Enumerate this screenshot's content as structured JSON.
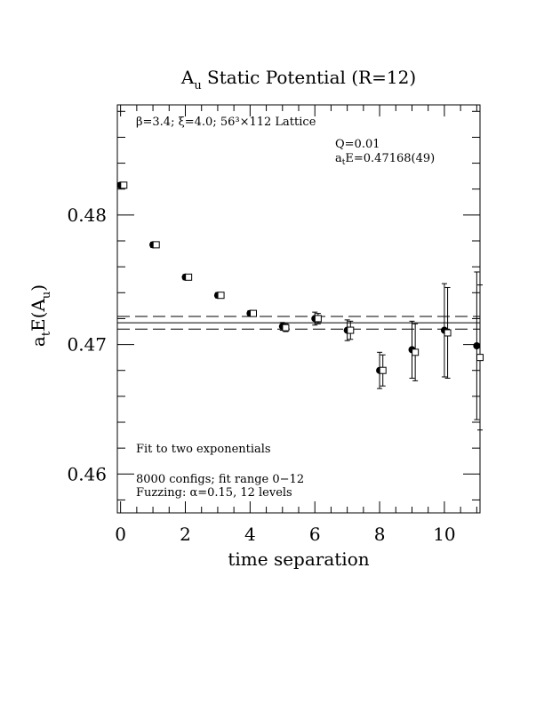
{
  "chart_data": {
    "type": "scatter",
    "title_main": "A",
    "title_sub": "u",
    "title_rest": " Static Potential (R=12)",
    "xlabel": "time separation",
    "ylabel_main": "a",
    "ylabel_sub": "t",
    "ylabel_mid": "E(A",
    "ylabel_sub2": "u",
    "ylabel_end": ")",
    "xlim": [
      -0.1,
      11.1
    ],
    "ylim": [
      0.457,
      0.4885
    ],
    "x_ticks": [
      0,
      2,
      4,
      6,
      8,
      10
    ],
    "x_tick_labels": [
      "0",
      "2",
      "4",
      "6",
      "8",
      "10"
    ],
    "y_ticks": [
      0.46,
      0.47,
      0.48
    ],
    "y_tick_labels": [
      "0.46",
      "0.47",
      "0.48"
    ],
    "lattice_label": "β=3.4; ξ=4.0; 56³×112 Lattice",
    "q_label": "Q=0.01",
    "fit_label_main": "a",
    "fit_label_sub": "t",
    "fit_label_rest": "E=0.47168(49)",
    "annotation_fit": "Fit to two exponentials",
    "annotation_configs": "8000 configs; fit range 0−12",
    "annotation_fuzzing": "Fuzzing: α=0.15, 12 levels",
    "fit_value": 0.47168,
    "fit_error": 0.00049,
    "series": [
      {
        "marker": "filled-circle",
        "x": [
          0,
          1,
          2,
          3,
          4,
          5,
          6,
          7,
          8,
          9,
          10,
          11
        ],
        "y": [
          0.4823,
          0.4777,
          0.4752,
          0.4738,
          0.4724,
          0.4714,
          0.472,
          0.4711,
          0.468,
          0.4696,
          0.4711,
          0.4699
        ],
        "err": [
          0.0002,
          0.0002,
          0.0002,
          0.0002,
          0.0002,
          0.0003,
          0.0005,
          0.0008,
          0.0014,
          0.0022,
          0.0036,
          0.0057
        ]
      },
      {
        "marker": "open-square",
        "x": [
          0.1,
          1.1,
          2.1,
          3.1,
          4.1,
          5.1,
          6.1,
          7.1,
          8.1,
          9.1,
          10.1,
          11.1
        ],
        "y": [
          0.4823,
          0.4777,
          0.4752,
          0.4738,
          0.4724,
          0.4713,
          0.472,
          0.4711,
          0.468,
          0.4694,
          0.4709,
          0.469
        ],
        "err": [
          0.0002,
          0.0002,
          0.0002,
          0.0002,
          0.0002,
          0.0003,
          0.0004,
          0.0007,
          0.0012,
          0.0022,
          0.0035,
          0.0056
        ]
      }
    ]
  }
}
